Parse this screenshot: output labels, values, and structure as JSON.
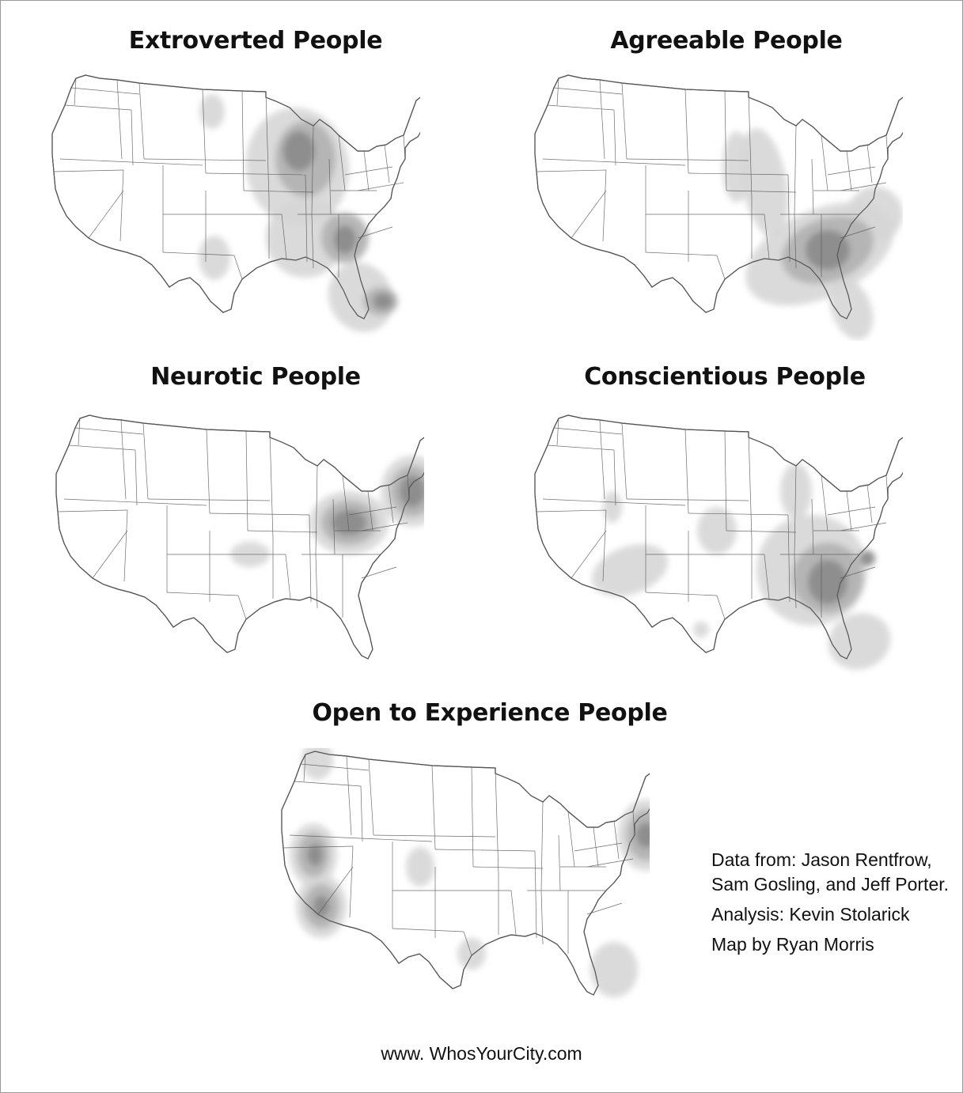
{
  "maps": [
    {
      "title": "Extroverted People"
    },
    {
      "title": "Agreeable People"
    },
    {
      "title": "Neurotic People"
    },
    {
      "title": "Conscientious People"
    },
    {
      "title": "Open to Experience People"
    }
  ],
  "credits": {
    "line1": "Data from: Jason Rentfrow,",
    "line2": "Sam Gosling, and Jeff Porter.",
    "line3": "Analysis: Kevin Stolarick",
    "line4": "Map by Ryan Morris"
  },
  "footer": {
    "url": "www. WhosYourCity.com"
  },
  "colors": {
    "light": "#d6d6d6",
    "medium": "#b3b3b3",
    "dark": "#8c8c8c",
    "border": "#555555"
  }
}
